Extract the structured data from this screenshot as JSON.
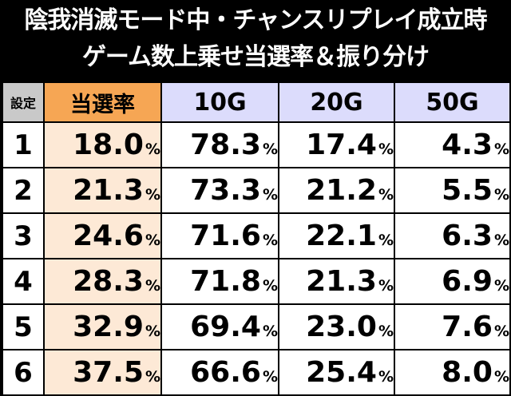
{
  "title_line1": "陰我消滅モード中・チャンスリプレイ成立時",
  "title_line2": "ゲーム数上乗せ当選率＆振り分け",
  "headers": {
    "setting": "設定",
    "rate": "当選率",
    "g10": "10G",
    "g20": "20G",
    "g50": "50G"
  },
  "percent_symbol": "%",
  "rows": [
    {
      "setting": "1",
      "rate": "18.0",
      "g10": "78.3",
      "g20": "17.4",
      "g50": "4.3"
    },
    {
      "setting": "2",
      "rate": "21.3",
      "g10": "73.3",
      "g20": "21.2",
      "g50": "5.5"
    },
    {
      "setting": "3",
      "rate": "24.6",
      "g10": "71.6",
      "g20": "22.1",
      "g50": "6.3"
    },
    {
      "setting": "4",
      "rate": "28.3",
      "g10": "71.8",
      "g20": "21.3",
      "g50": "6.9"
    },
    {
      "setting": "5",
      "rate": "32.9",
      "g10": "69.4",
      "g20": "23.0",
      "g50": "7.6"
    },
    {
      "setting": "6",
      "rate": "37.5",
      "g10": "66.6",
      "g20": "25.4",
      "g50": "8.0"
    }
  ]
}
